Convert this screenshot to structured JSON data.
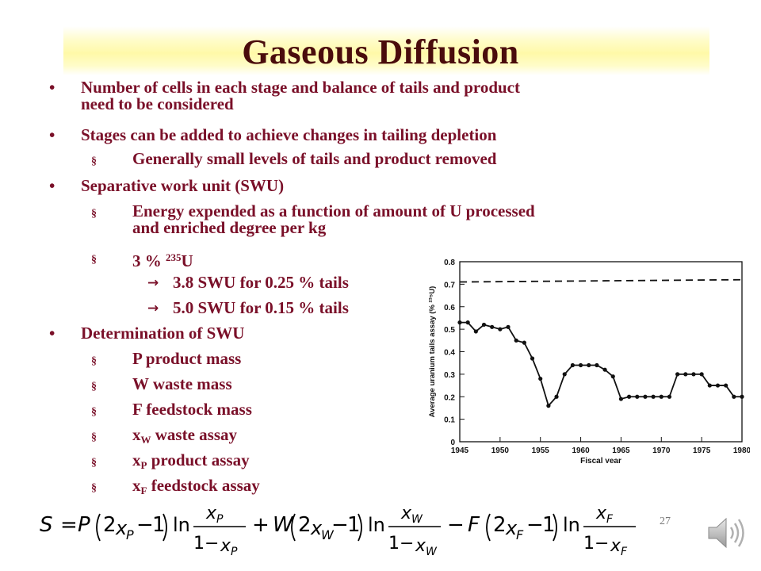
{
  "slide": {
    "title": "Gaseous Diffusion",
    "page_number": "27",
    "colors": {
      "text": "#7a1029",
      "title": "#4a0c0c",
      "band": "#fff9a8"
    },
    "bullets": [
      {
        "level": 1,
        "marker": "•",
        "lines": [
          "Number of cells in each stage and balance of tails and product",
          "need to be considered"
        ]
      },
      {
        "level": 1,
        "marker": "•",
        "text": "Stages can be added to achieve changes in tailing depletion"
      },
      {
        "level": 2,
        "marker": "§",
        "text": "Generally small levels of tails and product removed"
      },
      {
        "level": 1,
        "marker": "•",
        "text": "Separative work unit (SWU)"
      },
      {
        "level": 2,
        "marker": "§",
        "lines": [
          "Energy expended as a function of amount of U processed",
          "and enriched degree per kg"
        ]
      },
      {
        "level": 2,
        "marker": "§",
        "pre": "3 % ",
        "sup": "235",
        "post": "U"
      },
      {
        "level": 3,
        "marker": "→",
        "text": "3.8 SWU for 0.25 % tails"
      },
      {
        "level": 3,
        "marker": "→",
        "text": "5.0 SWU for 0.15 % tails"
      },
      {
        "level": 1,
        "marker": "•",
        "text": "Determination of SWU"
      },
      {
        "level": 2,
        "marker": "§",
        "text": "P product mass"
      },
      {
        "level": 2,
        "marker": "§",
        "text": "W waste mass"
      },
      {
        "level": 2,
        "marker": "§",
        "text": "F feedstock mass"
      },
      {
        "level": 2,
        "marker": "§",
        "var": "x",
        "sub": "W",
        "post": " waste assay"
      },
      {
        "level": 2,
        "marker": "§",
        "var": "x",
        "sub": "P",
        "post": " product assay"
      },
      {
        "level": 2,
        "marker": "§",
        "var": "x",
        "sub": "F",
        "post": " feedstock assay"
      }
    ],
    "formula": {
      "lhs": "S",
      "terms": [
        {
          "sign": "",
          "coef": "P",
          "sub": "P"
        },
        {
          "sign": "+",
          "coef": "W",
          "sub": "W"
        },
        {
          "sign": "−",
          "coef": "F",
          "sub": "F"
        }
      ],
      "two": "2",
      "one": "1",
      "ln": "ln",
      "x": "x",
      "eq": "=",
      "minus": "−"
    }
  },
  "chart_data": {
    "type": "line",
    "xlabel": "Fiscal year",
    "ylabel": "Average uranium tails assay (% ²³⁵U)",
    "xlim": [
      1945,
      1980
    ],
    "ylim": [
      0,
      0.8
    ],
    "xticks": [
      1945,
      1950,
      1955,
      1960,
      1965,
      1970,
      1975,
      1980
    ],
    "yticks": [
      0,
      0.1,
      0.2,
      0.3,
      0.4,
      0.5,
      0.6,
      0.7,
      0.8
    ],
    "grid": false,
    "series": [
      {
        "style": "solid-with-markers",
        "x": [
          1945,
          1946,
          1947,
          1948,
          1949,
          1950,
          1951,
          1952,
          1953,
          1954,
          1955,
          1956,
          1957,
          1958,
          1959,
          1960,
          1961,
          1962,
          1963,
          1964,
          1965,
          1966,
          1967,
          1968,
          1969,
          1970,
          1971,
          1972,
          1973,
          1974,
          1975,
          1976,
          1977,
          1978,
          1979,
          1980
        ],
        "y": [
          0.53,
          0.53,
          0.49,
          0.52,
          0.51,
          0.5,
          0.51,
          0.45,
          0.44,
          0.37,
          0.28,
          0.16,
          0.2,
          0.3,
          0.34,
          0.34,
          0.34,
          0.34,
          0.32,
          0.29,
          0.19,
          0.2,
          0.2,
          0.2,
          0.2,
          0.2,
          0.2,
          0.3,
          0.3,
          0.3,
          0.3,
          0.25,
          0.25,
          0.25,
          0.2,
          0.2
        ]
      },
      {
        "style": "dashed",
        "x": [
          1945,
          1980
        ],
        "y": [
          0.71,
          0.72
        ]
      }
    ]
  }
}
